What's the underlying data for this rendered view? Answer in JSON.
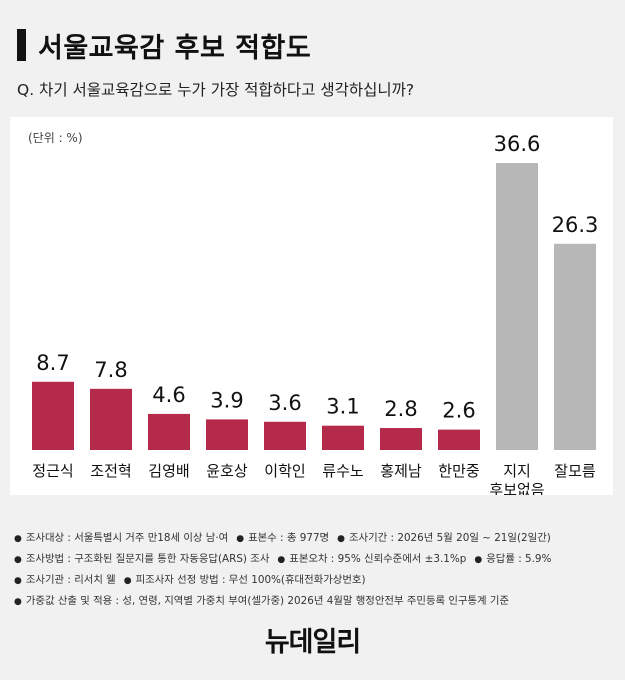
{
  "header": {
    "title": "서울교육감 후보 적합도",
    "question": "Q. 차기 서울교육감으로 누가 가장 적합하다고 생각하십니까?"
  },
  "unit_label": "(단위 : %)",
  "colors": {
    "candidate_bar": "#b5294b",
    "other_bar": "#b7b7b7",
    "background": "#f1f1f1",
    "panel": "#ffffff"
  },
  "chart_data": {
    "type": "bar",
    "title": "서울교육감 후보 적합도",
    "categories": [
      "정근식",
      "조전혁",
      "김영배",
      "윤호상",
      "이학인",
      "류수노",
      "홍제남",
      "한만중",
      "지지\n후보없음",
      "잘모름"
    ],
    "values": [
      8.7,
      7.8,
      4.6,
      3.9,
      3.6,
      3.1,
      2.8,
      2.6,
      36.6,
      26.3
    ],
    "value_labels": [
      "8.7",
      "7.8",
      "4.6",
      "3.9",
      "3.6",
      "3.1",
      "2.8",
      "2.6",
      "36.6",
      "26.3"
    ],
    "bar_kind": [
      "candidate",
      "candidate",
      "candidate",
      "candidate",
      "candidate",
      "candidate",
      "candidate",
      "candidate",
      "other",
      "other"
    ],
    "ylabel": "",
    "xlabel": "",
    "ylim": [
      0,
      36.6
    ],
    "grid": false,
    "legend": "none"
  },
  "notes": [
    [
      "조사대상 : 서울특별시 거주 만18세 이상 남·여",
      "표본수 : 총 977명",
      "조사기간 : 2026년 5월 20일 ~ 21일(2일간)"
    ],
    [
      "조사방법 : 구조화된 질문지를 통한 자동응답(ARS) 조사",
      "표본오차 : 95% 신뢰수준에서 ±3.1%p",
      "응답률 : 5.9%"
    ],
    [
      "조사기관 : 리서치 웰",
      "피조사자 선정 방법 : 무선 100%(휴대전화가상번호)"
    ],
    [
      "가중값 산출 및 적용 : 성, 연령, 지역별 가중치 부여(셀가중) 2026년 4월말 행정안전부 주민등록 인구통계 기준"
    ]
  ],
  "logo": "뉴데일리"
}
